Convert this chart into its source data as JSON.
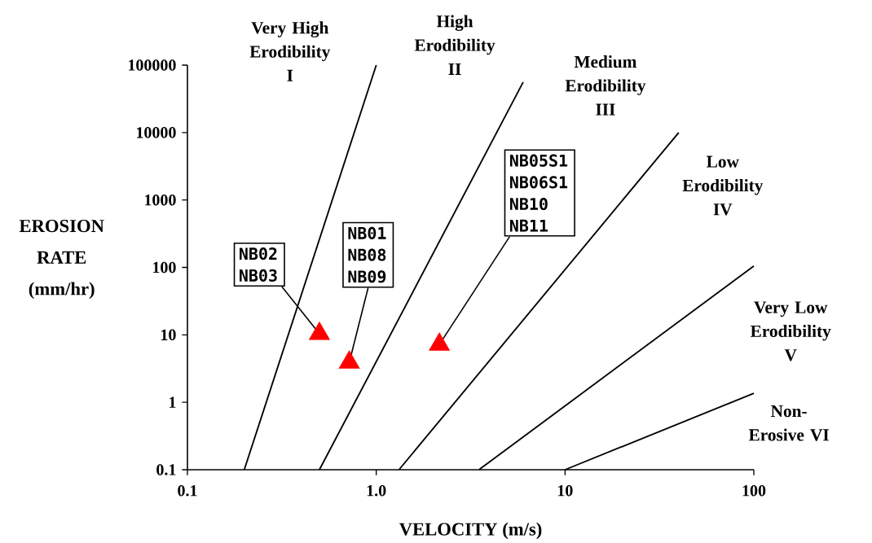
{
  "chart_data": {
    "type": "line",
    "log": "xy",
    "xlabel": "VELOCITY (m/s)",
    "ylabel": "EROSION RATE (mm/hr)",
    "xlim": [
      0.1,
      100
    ],
    "ylim": [
      0.1,
      100000
    ],
    "xticks": [
      0.1,
      {
        "value": 1,
        "label": "1.0"
      },
      10,
      100
    ],
    "yticks": [
      0.1,
      1,
      10,
      100,
      1000,
      10000,
      100000
    ],
    "grid": false,
    "legend": false,
    "series": [
      {
        "color": "#000000",
        "marker": "none",
        "x": [
          0.2,
          1.0
        ],
        "values": [
          0.1,
          100000
        ]
      },
      {
        "color": "#000000",
        "marker": "none",
        "x": [
          0.5,
          6
        ],
        "values": [
          0.1,
          56000
        ]
      },
      {
        "color": "#000000",
        "marker": "none",
        "x": [
          1.32,
          40
        ],
        "values": [
          0.1,
          10000
        ]
      },
      {
        "color": "#000000",
        "marker": "none",
        "x": [
          3.5,
          100
        ],
        "values": [
          0.1,
          105
        ]
      },
      {
        "color": "#000000",
        "marker": "none",
        "x": [
          10,
          100
        ],
        "values": [
          0.1,
          1.36
        ]
      },
      {
        "type": "scatter",
        "color": "#ff0000",
        "marker": "triangle",
        "x": [
          0.5,
          0.72,
          2.16
        ],
        "values": [
          10.4,
          3.9,
          7.2
        ]
      }
    ],
    "annotations": [
      "Very High Erodibility I",
      "High Erodibility II",
      "Medium Erodibility III",
      "Low Erodibility IV",
      "Very Low Erodibility V",
      "Non-Erosive VI",
      {
        "text": "NB02 NB03",
        "x": 0.5,
        "y": 10.4
      },
      {
        "text": "NB01 NB08 NB09",
        "x": 0.72,
        "y": 3.9
      },
      {
        "text": "NB05S1 NB06S1 NB10 NB11",
        "x": 2.16,
        "y": 7.2
      }
    ]
  }
}
